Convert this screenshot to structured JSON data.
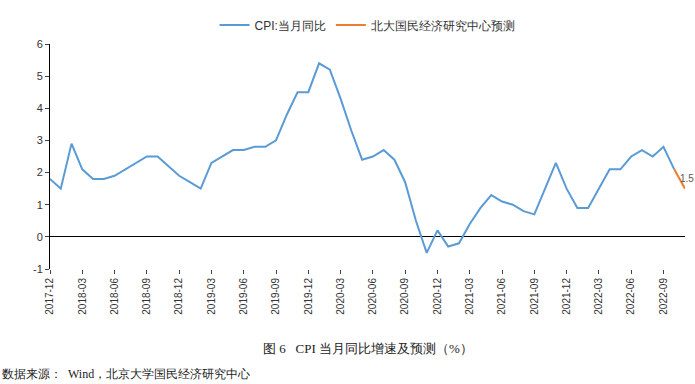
{
  "chart_data": {
    "type": "line",
    "title": "图 6   CPI 当月同比增速及预测（%）",
    "source": "数据来源：  Wind，北京大学国民经济研究中心",
    "categories": [
      "2017-12",
      null,
      null,
      "2018-03",
      null,
      null,
      "2018-06",
      null,
      null,
      "2018-09",
      null,
      null,
      "2018-12",
      null,
      null,
      "2019-03",
      null,
      null,
      "2019-06",
      null,
      null,
      "2019-09",
      null,
      null,
      "2019-12",
      null,
      null,
      "2020-03",
      null,
      null,
      "2020-06",
      null,
      null,
      "2020-09",
      null,
      null,
      "2020-12",
      null,
      null,
      "2021-03",
      null,
      null,
      "2021-06",
      null,
      null,
      "2021-09",
      null,
      null,
      "2021-12",
      null,
      null,
      "2022-03",
      null,
      null,
      "2022-06",
      null,
      null,
      "2022-09",
      null,
      null
    ],
    "series": [
      {
        "name": "CPI:当月同比",
        "color": "#5b9bd5",
        "values": [
          1.8,
          1.5,
          2.9,
          2.1,
          1.8,
          1.8,
          1.9,
          2.1,
          2.3,
          2.5,
          2.5,
          2.2,
          1.9,
          1.7,
          1.5,
          2.3,
          2.5,
          2.7,
          2.7,
          2.8,
          2.8,
          3.0,
          3.8,
          4.5,
          4.5,
          5.4,
          5.2,
          4.3,
          3.3,
          2.4,
          2.5,
          2.7,
          2.4,
          1.7,
          0.5,
          -0.5,
          0.2,
          -0.3,
          -0.2,
          0.4,
          0.9,
          1.3,
          1.1,
          1.0,
          0.8,
          0.7,
          1.5,
          2.3,
          1.5,
          0.9,
          0.9,
          1.5,
          2.1,
          2.1,
          2.5,
          2.7,
          2.5,
          2.8,
          2.1,
          null
        ]
      },
      {
        "name": "北大国民经济研究中心预测",
        "color": "#ed7d31",
        "values": [
          null,
          null,
          null,
          null,
          null,
          null,
          null,
          null,
          null,
          null,
          null,
          null,
          null,
          null,
          null,
          null,
          null,
          null,
          null,
          null,
          null,
          null,
          null,
          null,
          null,
          null,
          null,
          null,
          null,
          null,
          null,
          null,
          null,
          null,
          null,
          null,
          null,
          null,
          null,
          null,
          null,
          null,
          null,
          null,
          null,
          null,
          null,
          null,
          null,
          null,
          null,
          null,
          null,
          null,
          null,
          null,
          null,
          null,
          2.1,
          1.5
        ]
      }
    ],
    "annotations": [
      {
        "x": 59,
        "y": 1.5,
        "text": "1.5"
      }
    ],
    "ylim": [
      -1,
      6
    ],
    "yticks": [
      -1,
      0,
      1,
      2,
      3,
      4,
      5,
      6
    ],
    "grid": false,
    "legend": "top"
  }
}
